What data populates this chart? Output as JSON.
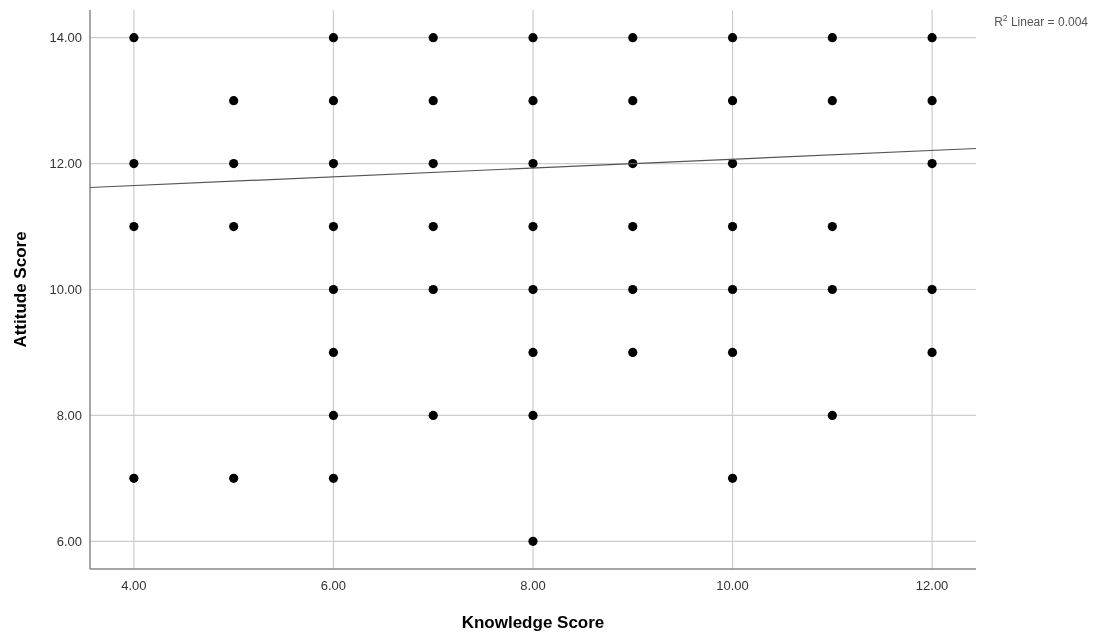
{
  "chart_data": {
    "type": "scatter",
    "xlabel": "Knowledge Score",
    "ylabel": "Attitude Score",
    "annotations": [
      "R$^{2}$ Linear = 0.004"
    ],
    "xlim": [
      3.56,
      12.44
    ],
    "ylim": [
      5.56,
      14.44
    ],
    "xticks": [
      {
        "value": 4,
        "label": "4.00"
      },
      {
        "value": 6,
        "label": "6.00"
      },
      {
        "value": 8,
        "label": "8.00"
      },
      {
        "value": 10,
        "label": "10.00"
      },
      {
        "value": 12,
        "label": "12.00"
      }
    ],
    "yticks": [
      {
        "value": 6,
        "label": "6.00"
      },
      {
        "value": 8,
        "label": "8.00"
      },
      {
        "value": 10,
        "label": "10.00"
      },
      {
        "value": 12,
        "label": "12.00"
      },
      {
        "value": 14,
        "label": "14.00"
      }
    ],
    "grid": true,
    "series": [
      {
        "color": "#000000",
        "marker": "circle",
        "x": [
          4,
          4,
          4,
          4,
          5,
          5,
          5,
          5,
          6,
          6,
          6,
          6,
          6,
          6,
          6,
          6,
          7,
          7,
          7,
          7,
          7,
          7,
          8,
          8,
          8,
          8,
          8,
          8,
          8,
          8,
          9,
          9,
          9,
          9,
          9,
          9,
          10,
          10,
          10,
          10,
          10,
          10,
          10,
          11,
          11,
          11,
          11,
          11,
          12,
          12,
          12,
          12,
          12
        ],
        "values": [
          14,
          12,
          11,
          7,
          13,
          12,
          11,
          7,
          14,
          13,
          12,
          11,
          10,
          9,
          8,
          7,
          14,
          13,
          12,
          11,
          10,
          8,
          14,
          13,
          12,
          11,
          10,
          9,
          8,
          6,
          14,
          13,
          12,
          11,
          10,
          9,
          14,
          13,
          12,
          11,
          10,
          9,
          7,
          14,
          13,
          11,
          10,
          8,
          14,
          13,
          12,
          10,
          9
        ]
      },
      {
        "type": "line",
        "color": "#555555",
        "line_style": "solid",
        "x": [
          3.56,
          12.44
        ],
        "values": [
          11.62,
          12.24
        ]
      }
    ]
  }
}
